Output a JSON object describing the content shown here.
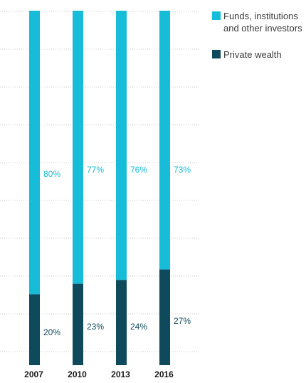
{
  "chart_data": {
    "type": "bar",
    "stacked": true,
    "categories": [
      "2007",
      "2010",
      "2013",
      "2016"
    ],
    "series": [
      {
        "name": "Private wealth",
        "color": "#0e4a5c",
        "values": [
          20,
          23,
          24,
          27
        ],
        "labels": [
          "20%",
          "23%",
          "24%",
          "27%"
        ]
      },
      {
        "name": "Funds, institutions and other investors",
        "color": "#16bcd8",
        "values": [
          80,
          77,
          76,
          73
        ],
        "labels": [
          "80%",
          "77%",
          "76%",
          "73%"
        ]
      }
    ],
    "ylim": [
      0,
      100
    ],
    "grid": true,
    "legend": {
      "placement": "top-right",
      "entries": [
        {
          "lines": [
            "Funds, institutions",
            "and other investors"
          ],
          "color": "#16bcd8"
        },
        {
          "lines": [
            "Private wealth"
          ],
          "color": "#0e4a5c"
        }
      ]
    }
  }
}
